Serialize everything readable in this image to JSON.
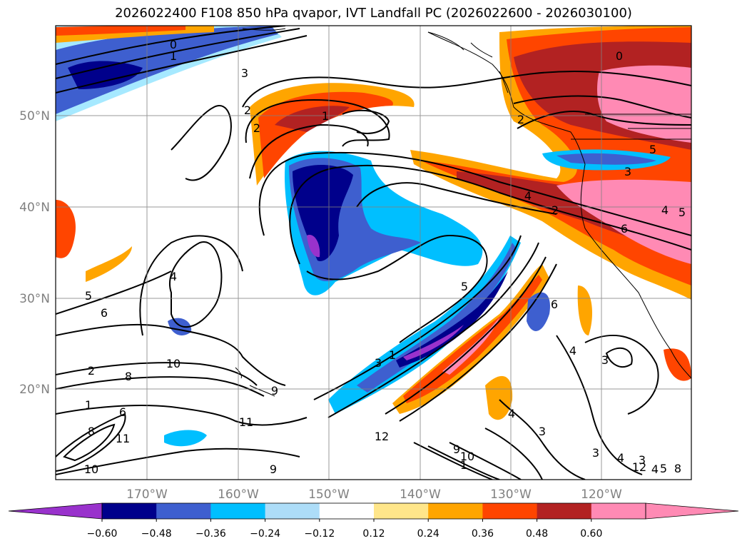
{
  "title": "2026022400 F108 850 hPa qvapor, IVT Landfall PC (2026022600 - 2026030100)",
  "map": {
    "lon_labels": [
      "170°W",
      "160°W",
      "150°W",
      "140°W",
      "130°W",
      "120°W"
    ],
    "lat_labels": [
      "50°N",
      "40°N",
      "30°N",
      "20°N"
    ],
    "contour_labels": [
      "0",
      "1",
      "3",
      "2",
      "1",
      "2",
      "0",
      "2",
      "3",
      "5",
      "4",
      "6",
      "4",
      "5",
      "5",
      "6",
      "4",
      "5",
      "6",
      "4",
      "4",
      "1",
      "3",
      "2",
      "8",
      "10",
      "9",
      "1",
      "11",
      "6",
      "11",
      "8",
      "10",
      "12",
      "9",
      "9",
      "10",
      "1",
      "12",
      "4",
      "3",
      "3",
      "3",
      "4",
      "3",
      "2",
      "5",
      "8"
    ]
  },
  "colorbar": {
    "tick_labels": [
      "-0.60",
      "-0.48",
      "-0.36",
      "-0.24",
      "-0.12",
      "0.12",
      "0.24",
      "0.36",
      "0.48",
      "0.60"
    ],
    "colors": [
      "#9932CC",
      "#00008B",
      "#3E5FCF",
      "#00BFFF",
      "#ADDDF8",
      "#FFFFFF",
      "#FFE68A",
      "#FFA500",
      "#FF4500",
      "#B22222",
      "#FF8AB4",
      "#FF8AB4"
    ],
    "extend": "both"
  }
}
